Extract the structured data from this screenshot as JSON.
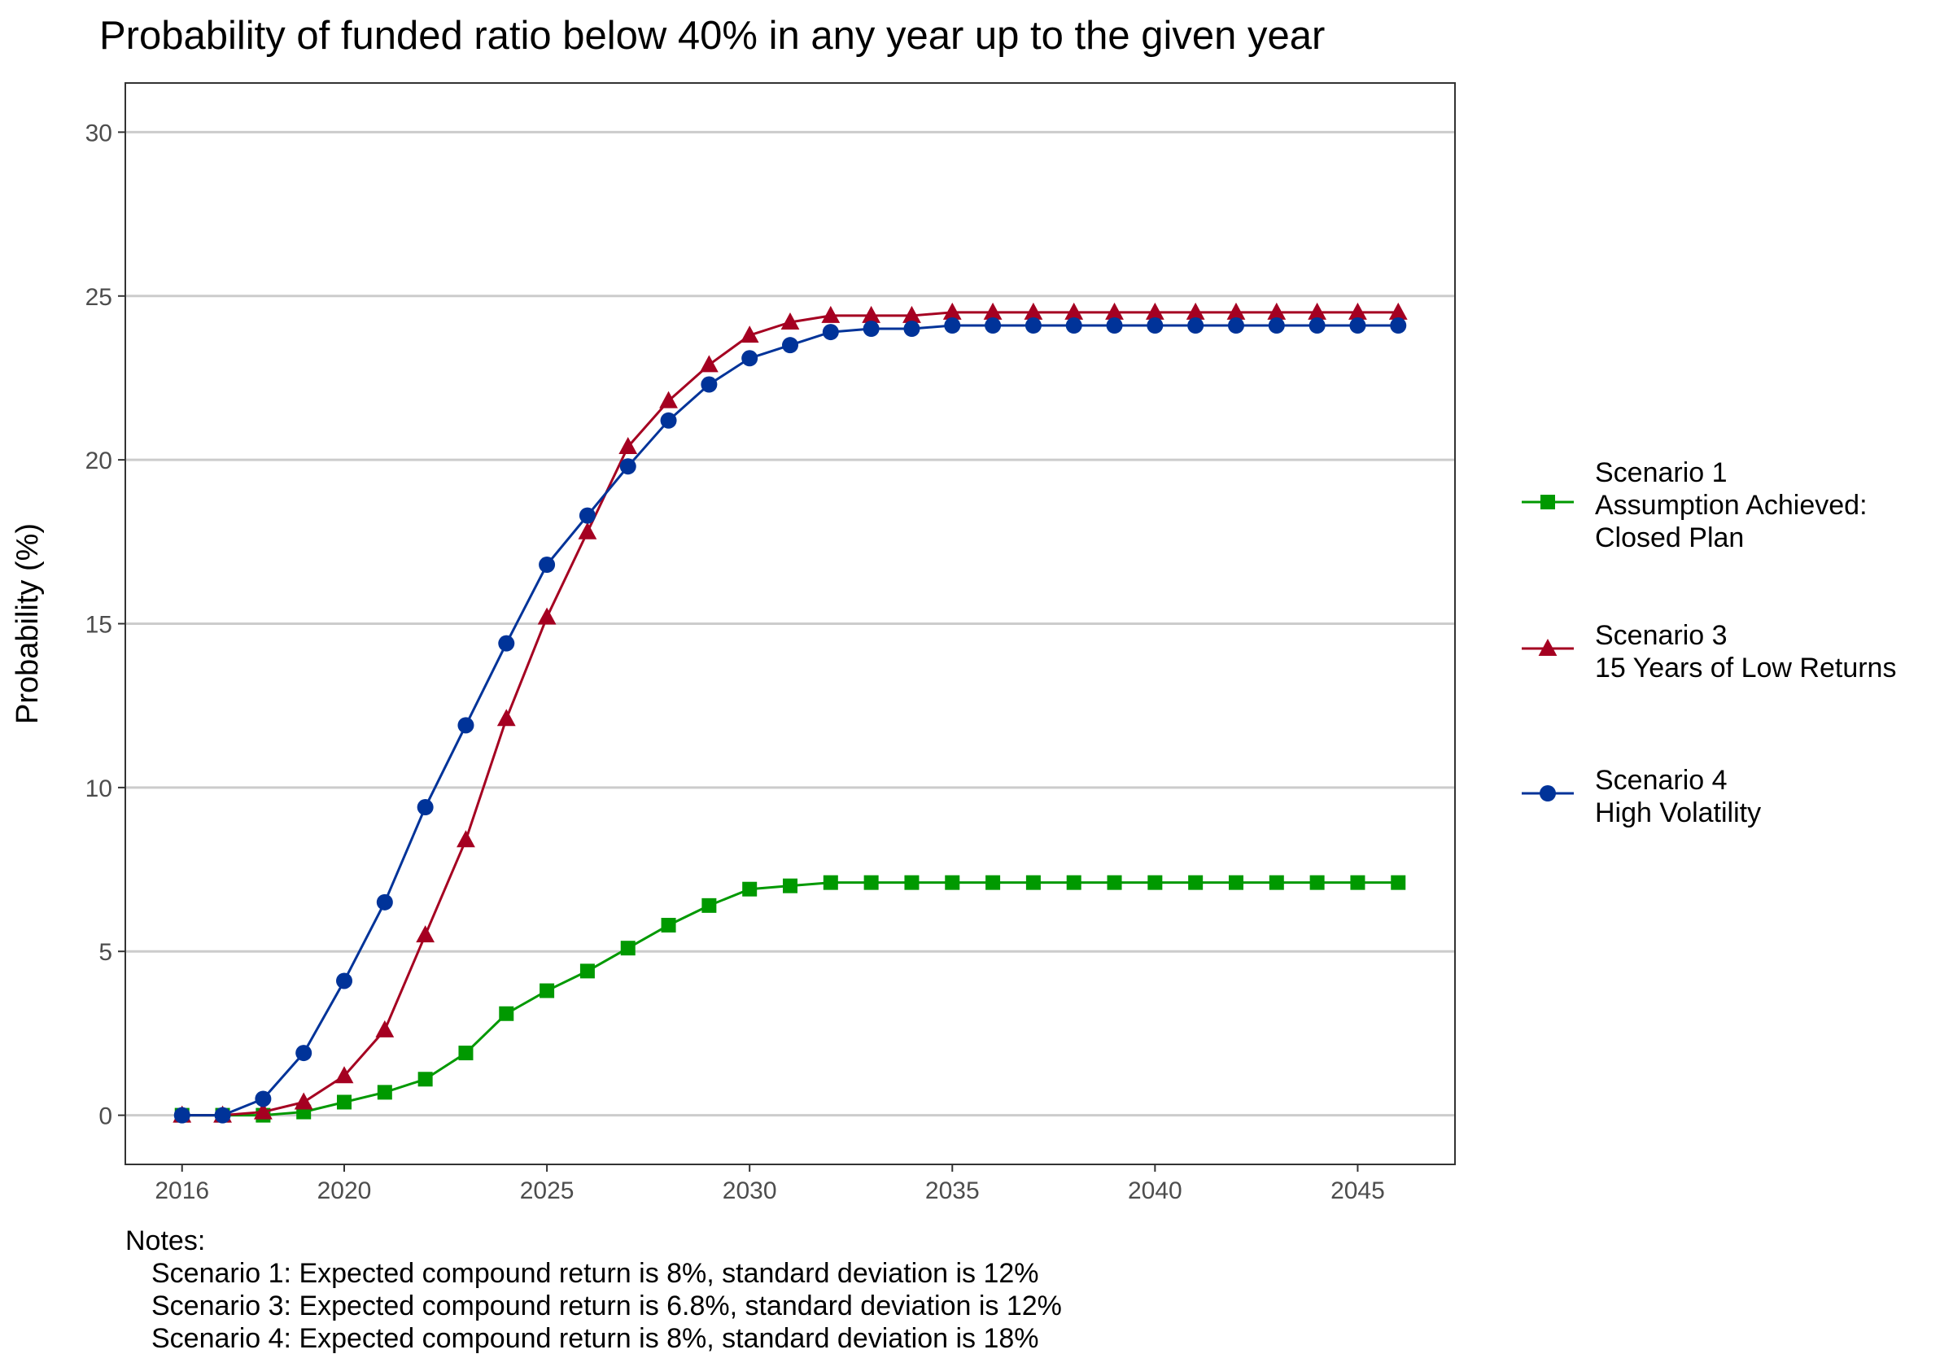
{
  "chart_data": {
    "type": "line",
    "title": "Probability of funded ratio below 40% in any year up to the given year",
    "xlabel": "",
    "ylabel": "Probability (%)",
    "xlim": [
      2014.6,
      2047.4
    ],
    "ylim": [
      -1.5,
      31.5
    ],
    "x_ticks": [
      2016,
      2020,
      2025,
      2030,
      2035,
      2040,
      2045
    ],
    "y_ticks": [
      0,
      5,
      10,
      15,
      20,
      25,
      30
    ],
    "grid": "horizontal major",
    "legend_position": "right",
    "x": [
      2016,
      2017,
      2018,
      2019,
      2020,
      2021,
      2022,
      2023,
      2024,
      2025,
      2026,
      2027,
      2028,
      2029,
      2030,
      2031,
      2032,
      2033,
      2034,
      2035,
      2036,
      2037,
      2038,
      2039,
      2040,
      2041,
      2042,
      2043,
      2044,
      2045,
      2046
    ],
    "series": [
      {
        "name": "Scenario 1",
        "legend_lines": [
          "Scenario 1",
          "Assumption Achieved:",
          "Closed Plan"
        ],
        "color": "#009900",
        "marker": "square",
        "values": [
          0,
          0,
          0,
          0.1,
          0.4,
          0.7,
          1.1,
          1.9,
          3.1,
          3.8,
          4.4,
          5.1,
          5.8,
          6.4,
          6.9,
          7.0,
          7.1,
          7.1,
          7.1,
          7.1,
          7.1,
          7.1,
          7.1,
          7.1,
          7.1,
          7.1,
          7.1,
          7.1,
          7.1,
          7.1,
          7.1
        ]
      },
      {
        "name": "Scenario 3",
        "legend_lines": [
          "Scenario 3",
          "15 Years of Low Returns"
        ],
        "color": "#a50021",
        "marker": "triangle",
        "values": [
          0,
          0,
          0.1,
          0.4,
          1.2,
          2.6,
          5.5,
          8.4,
          12.1,
          15.2,
          17.8,
          20.4,
          21.8,
          22.9,
          23.8,
          24.2,
          24.4,
          24.4,
          24.4,
          24.5,
          24.5,
          24.5,
          24.5,
          24.5,
          24.5,
          24.5,
          24.5,
          24.5,
          24.5,
          24.5,
          24.5
        ]
      },
      {
        "name": "Scenario 4",
        "legend_lines": [
          "Scenario 4",
          "High Volatility"
        ],
        "color": "#003399",
        "marker": "circle",
        "values": [
          0,
          0,
          0.5,
          1.9,
          4.1,
          6.5,
          9.4,
          11.9,
          14.4,
          16.8,
          18.3,
          19.8,
          21.2,
          22.3,
          23.1,
          23.5,
          23.9,
          24.0,
          24.0,
          24.1,
          24.1,
          24.1,
          24.1,
          24.1,
          24.1,
          24.1,
          24.1,
          24.1,
          24.1,
          24.1,
          24.1
        ]
      }
    ],
    "notes": {
      "heading": "Notes:",
      "lines": [
        "Scenario 1: Expected compound return is 8%, standard deviation is 12%",
        "Scenario 3: Expected compound return is 6.8%, standard deviation is 12%",
        "Scenario 4: Expected compound return is 8%, standard deviation is 18%"
      ]
    }
  }
}
